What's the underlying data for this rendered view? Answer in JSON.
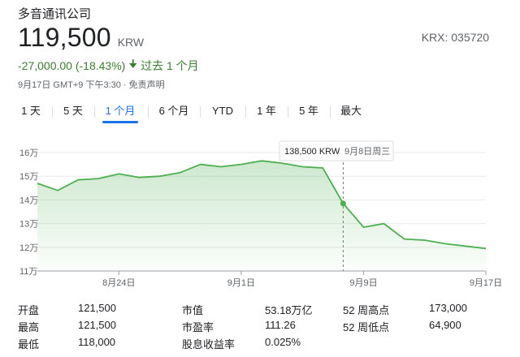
{
  "company": "多音通讯公司",
  "ticker": "KRX: 035720",
  "price": "119,500",
  "currency": "KRW",
  "change": "-27,000.00 (-18.43%)",
  "change_arrow": "down-arrow-icon",
  "change_period": "过去 1 个月",
  "meta": "9月17日 GMT+9 下午3:30 · 免责声明",
  "tabs": [
    {
      "label": "1 天",
      "active": false
    },
    {
      "label": "5 天",
      "active": false
    },
    {
      "label": "1 个月",
      "active": true
    },
    {
      "label": "6 个月",
      "active": false
    },
    {
      "label": "YTD",
      "active": false
    },
    {
      "label": "1 年",
      "active": false
    },
    {
      "label": "5 年",
      "active": false
    },
    {
      "label": "最大",
      "active": false
    }
  ],
  "tooltip": {
    "price": "138,500 KRW",
    "date": "9月8日周三"
  },
  "colors": {
    "line": "#4caf50",
    "text_green": "#3b7d2f",
    "accent": "#1a73e8"
  },
  "chart_data": {
    "type": "area",
    "y_ticks": [
      "16万",
      "15万",
      "14万",
      "13万",
      "12万",
      "11万"
    ],
    "y_tick_values": [
      160000,
      150000,
      140000,
      130000,
      120000,
      110000
    ],
    "ylim": [
      110000,
      160000
    ],
    "x_tick_labels": [
      "8月24日",
      "9月1日",
      "9月9日",
      "9月17日"
    ],
    "x_tick_index": [
      4,
      10,
      16,
      22
    ],
    "hover_index": 15,
    "values": [
      147000,
      144000,
      148500,
      149000,
      151000,
      149500,
      150000,
      151500,
      155000,
      154000,
      155000,
      156500,
      155500,
      154000,
      153500,
      138500,
      128500,
      130000,
      123500,
      123000,
      121500,
      120500,
      119500
    ]
  },
  "stats": [
    [
      {
        "label": "开盘",
        "value": "121,500"
      },
      {
        "label": "市值",
        "value": "53.18万亿"
      },
      {
        "label": "52 周高点",
        "value": "173,000"
      }
    ],
    [
      {
        "label": "最高",
        "value": "121,500"
      },
      {
        "label": "市盈率",
        "value": "111.26"
      },
      {
        "label": "52 周低点",
        "value": "64,900"
      }
    ],
    [
      {
        "label": "最低",
        "value": "118,000"
      },
      {
        "label": "股息收益率",
        "value": "0.025%"
      }
    ]
  ]
}
